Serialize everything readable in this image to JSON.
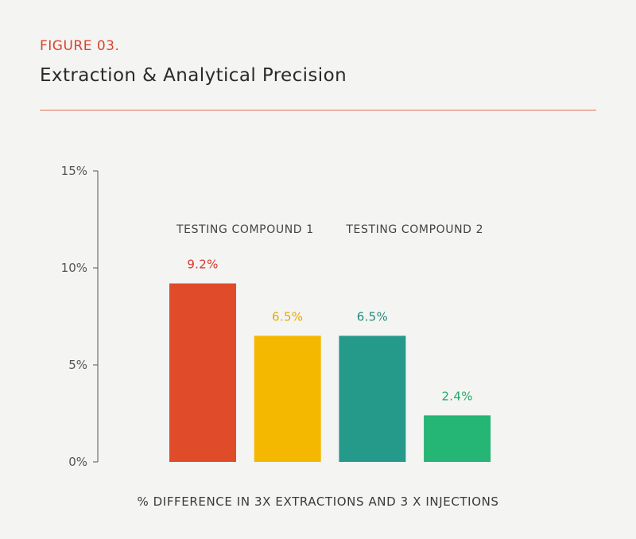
{
  "header": {
    "figure_label": "FIGURE 03.",
    "title": "Extraction & Analytical Precision"
  },
  "colors": {
    "accent": "#d9432a",
    "divider": "#e07252",
    "axis": "#555555"
  },
  "chart_data": {
    "type": "bar",
    "title": "Extraction & Analytical Precision",
    "xlabel": "% DIFFERENCE IN 3X EXTRACTIONS AND 3 X INJECTIONS",
    "ylabel": "",
    "ylim": [
      0,
      15
    ],
    "yticks": [
      0,
      5,
      10,
      15
    ],
    "ytick_labels": [
      "0%",
      "5%",
      "10%",
      "15%"
    ],
    "grid": false,
    "groups": [
      {
        "name": "TESTING COMPOUND 1",
        "bar_indices": [
          0,
          1
        ]
      },
      {
        "name": "TESTING COMPOUND 2",
        "bar_indices": [
          2,
          3
        ]
      }
    ],
    "bars": [
      {
        "value": 9.2,
        "label": "9.2%",
        "color": "#e04b2a",
        "label_color": "#d9362a"
      },
      {
        "value": 6.5,
        "label": "6.5%",
        "color": "#f5b800",
        "label_color": "#e8a900"
      },
      {
        "value": 6.5,
        "label": "6.5%",
        "color": "#269a8a",
        "label_color": "#1f8a7c"
      },
      {
        "value": 2.4,
        "label": "2.4%",
        "color": "#25b574",
        "label_color": "#22a868"
      }
    ]
  }
}
